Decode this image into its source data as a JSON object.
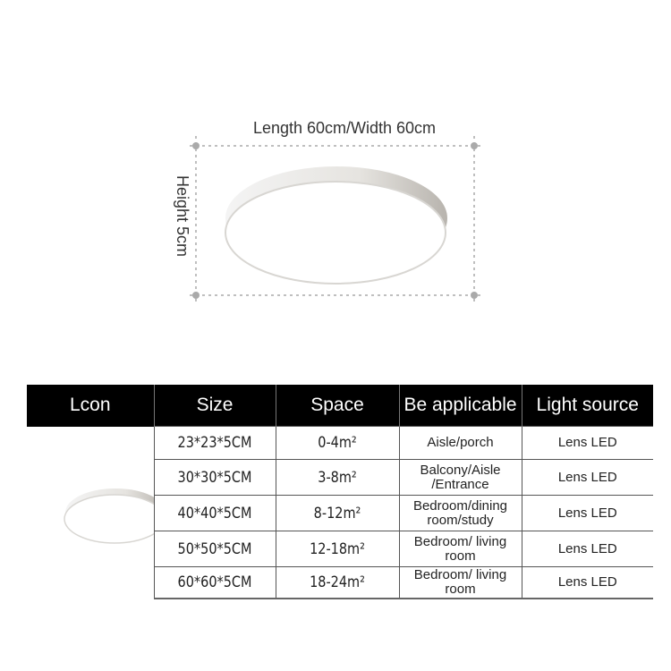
{
  "dimensions": {
    "length_width": "Length 60cm/Width 60cm",
    "height": "Height 5cm"
  },
  "table": {
    "headers": [
      "Lcon",
      "Size",
      "Space",
      "Be applicable",
      "Light source"
    ],
    "rows": [
      {
        "size": "23*23*5CM",
        "space": "0-4m²",
        "applicable": "Aisle/porch",
        "light": "Lens LED"
      },
      {
        "size": "30*30*5CM",
        "space": "3-8m²",
        "applicable": "Balcony/Aisle /Entrance",
        "light": "Lens LED"
      },
      {
        "size": "40*40*5CM",
        "space": "8-12m²",
        "applicable": "Bedroom/dining room/study",
        "light": "Lens LED"
      },
      {
        "size": "50*50*5CM",
        "space": "12-18m²",
        "applicable": "Bedroom/ living room",
        "light": "Lens LED"
      },
      {
        "size": "60*60*5CM",
        "space": "18-24m²",
        "applicable": "Bedroom/ living room",
        "light": "Lens LED"
      }
    ]
  },
  "colors": {
    "header_bg": "#000000",
    "header_text": "#ffffff"
  }
}
